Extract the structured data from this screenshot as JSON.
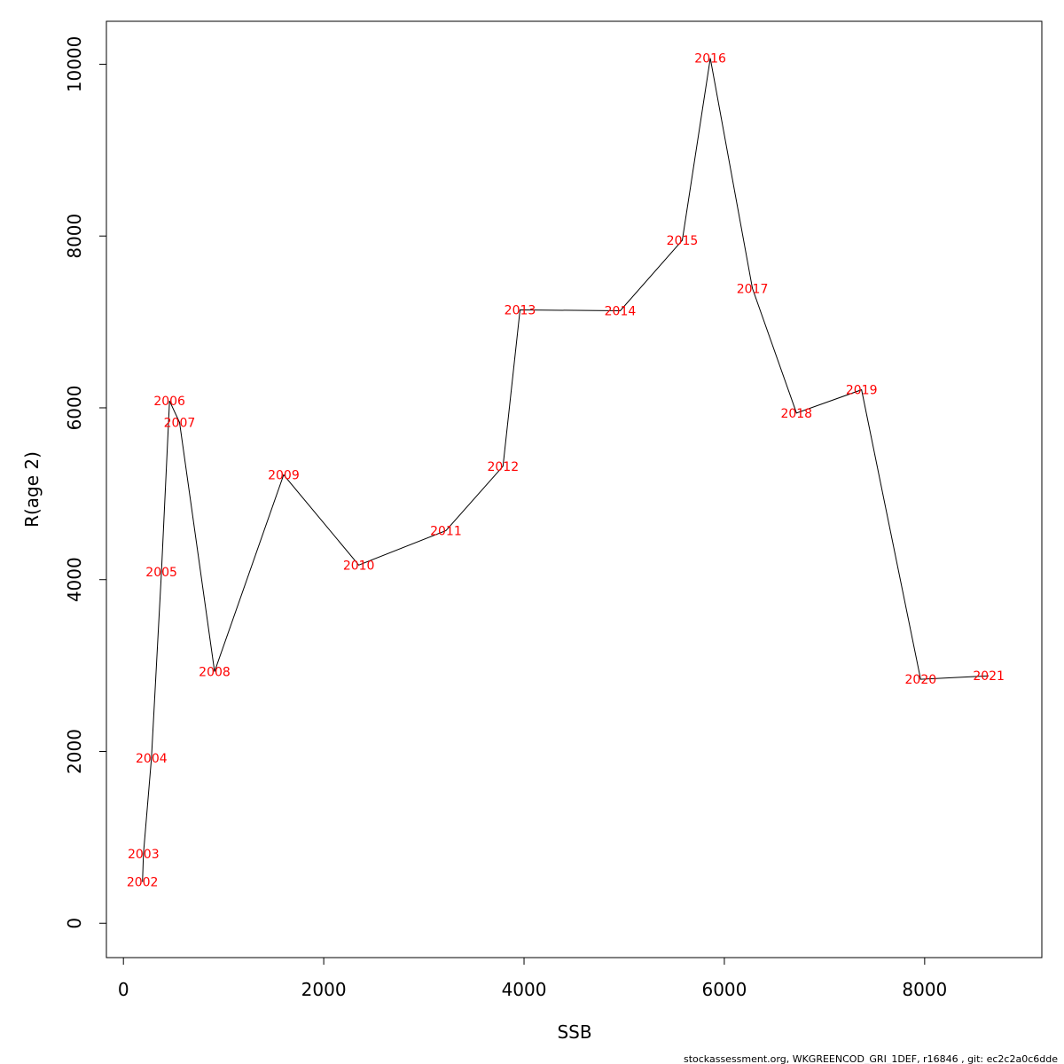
{
  "chart_data": {
    "type": "line",
    "title": "",
    "xlabel": "SSB",
    "ylabel": "R(age 2)",
    "xlim": [
      -170,
      9170
    ],
    "ylim": [
      -400,
      10500
    ],
    "xticks": [
      0,
      2000,
      4000,
      6000,
      8000
    ],
    "yticks": [
      0,
      2000,
      4000,
      6000,
      8000,
      10000
    ],
    "grid": false,
    "line_color": "#000000",
    "label_color": "#ff0000",
    "points": [
      {
        "label": "2002",
        "x": 190,
        "y": 480
      },
      {
        "label": "2003",
        "x": 200,
        "y": 810
      },
      {
        "label": "2004",
        "x": 280,
        "y": 1920
      },
      {
        "label": "2005",
        "x": 380,
        "y": 4090
      },
      {
        "label": "2006",
        "x": 460,
        "y": 6080
      },
      {
        "label": "2007",
        "x": 560,
        "y": 5830
      },
      {
        "label": "2008",
        "x": 910,
        "y": 2930
      },
      {
        "label": "2009",
        "x": 1600,
        "y": 5220
      },
      {
        "label": "2010",
        "x": 2350,
        "y": 4170
      },
      {
        "label": "2011",
        "x": 3220,
        "y": 4570
      },
      {
        "label": "2012",
        "x": 3790,
        "y": 5320
      },
      {
        "label": "2013",
        "x": 3960,
        "y": 7140
      },
      {
        "label": "2014",
        "x": 4960,
        "y": 7130
      },
      {
        "label": "2015",
        "x": 5580,
        "y": 7950
      },
      {
        "label": "2016",
        "x": 5860,
        "y": 10070
      },
      {
        "label": "2017",
        "x": 6280,
        "y": 7390
      },
      {
        "label": "2018",
        "x": 6720,
        "y": 5940
      },
      {
        "label": "2019",
        "x": 7370,
        "y": 6210
      },
      {
        "label": "2020",
        "x": 7960,
        "y": 2840
      },
      {
        "label": "2021",
        "x": 8640,
        "y": 2880
      }
    ]
  },
  "footer": "stockassessment.org, WKGREENCOD_GRI_1DEF, r16846 , git: ec2c2a0c6dde"
}
